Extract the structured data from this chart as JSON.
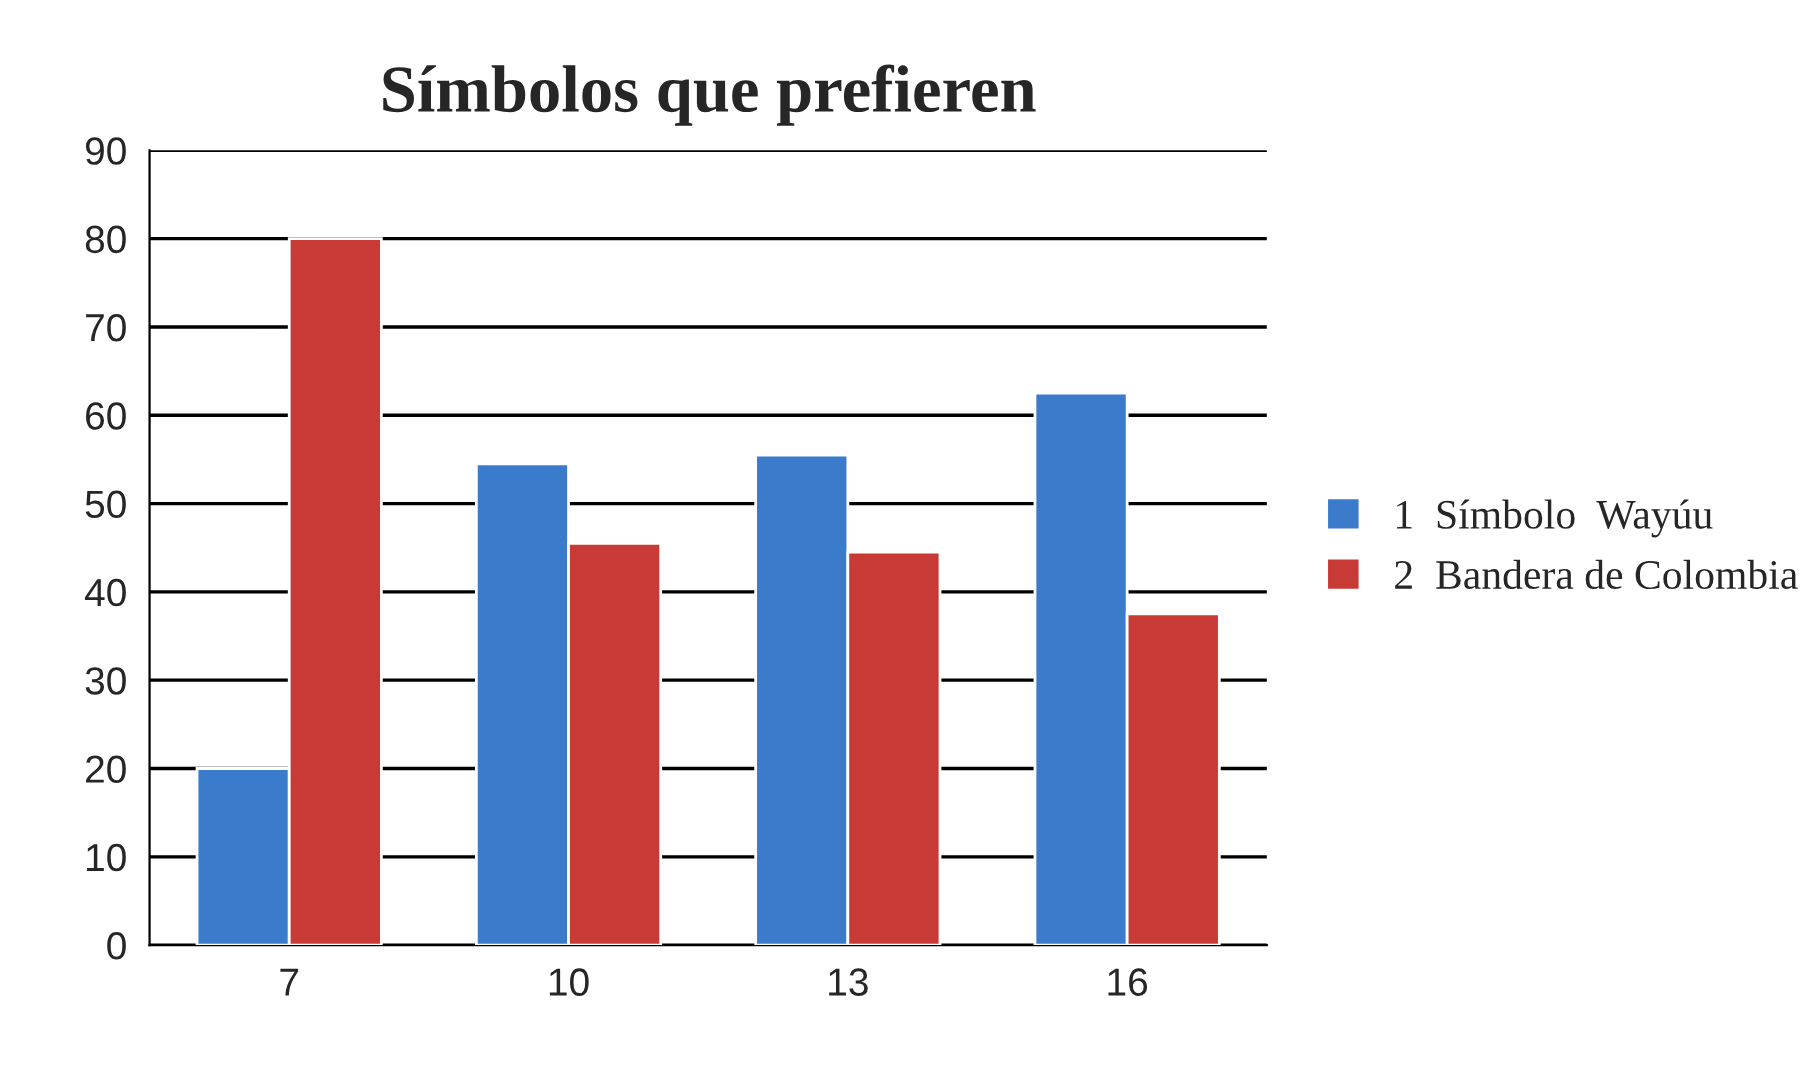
{
  "chart_data": {
    "type": "bar",
    "title": "Símbolos que prefieren",
    "categories": [
      "7",
      "10",
      "13",
      "16"
    ],
    "series": [
      {
        "name": "1  Símbolo  Wayúu",
        "color": "#3a7bcc",
        "values": [
          20,
          54.5,
          55.5,
          62.5
        ]
      },
      {
        "name": "2  Bandera de Colombia",
        "color": "#c83a36",
        "values": [
          80,
          45.5,
          44.5,
          37.5
        ]
      }
    ],
    "ylim": [
      0,
      90
    ],
    "yticks": [
      0,
      10,
      20,
      30,
      40,
      50,
      60,
      70,
      80,
      90
    ],
    "grid": "y",
    "legend": "right"
  }
}
